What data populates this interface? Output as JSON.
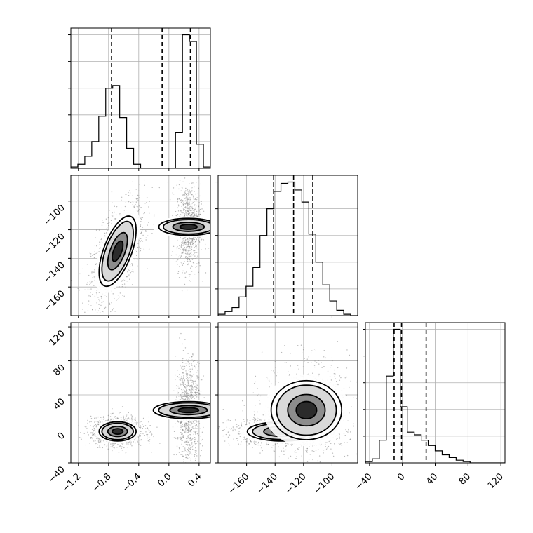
{
  "chart_data": {
    "type": "corner",
    "description_variables": 3,
    "colors": {
      "contour": "#000000",
      "scatter": "#7f7f7f",
      "grid": "#b0b0b0",
      "quantile_line": "#000000"
    },
    "grid": true,
    "panels": {
      "p1_hist": {
        "type": "histogram",
        "xlim": [
          -1.3,
          0.55
        ],
        "bin_edges": [
          -1.3,
          -1.2075,
          -1.115,
          -1.0225,
          -0.93,
          -0.8375,
          -0.745,
          -0.6525,
          -0.56,
          -0.4675,
          -0.375,
          -0.2825,
          -0.19,
          -0.0975,
          -0.005,
          0.0875,
          0.18,
          0.2725,
          0.365,
          0.4575,
          0.55
        ],
        "counts": [
          0.01,
          0.03,
          0.09,
          0.2,
          0.39,
          0.6,
          0.62,
          0.38,
          0.15,
          0.03,
          0,
          0,
          0,
          0,
          0,
          0.27,
          1.0,
          0.95,
          0.18,
          0.01
        ],
        "quantiles": [
          -0.76,
          -0.09,
          0.285
        ]
      },
      "p2_hist": {
        "type": "histogram",
        "xlim": [
          -180,
          -82
        ],
        "bin_edges": [
          -180,
          -175.1,
          -170.2,
          -165.3,
          -160.4,
          -155.5,
          -150.6,
          -145.7,
          -140.8,
          -135.9,
          -131,
          -126.1,
          -121.2,
          -116.3,
          -111.4,
          -106.5,
          -101.6,
          -96.7,
          -91.8,
          -86.9,
          -82
        ],
        "counts": [
          0.01,
          0.03,
          0.06,
          0.14,
          0.22,
          0.36,
          0.6,
          0.8,
          0.93,
          0.99,
          1.0,
          0.94,
          0.85,
          0.61,
          0.4,
          0.23,
          0.11,
          0.04,
          0.01,
          0
        ],
        "quantiles": [
          -141,
          -127,
          -113.5
        ]
      },
      "p3_hist": {
        "type": "histogram",
        "xlim": [
          -45,
          125
        ],
        "bin_edges": [
          -45,
          -36.5,
          -28,
          -19.5,
          -11,
          -2.5,
          6,
          14.5,
          23,
          31.5,
          40,
          48.5,
          57,
          65.5,
          74,
          82.5,
          91,
          99.5,
          108,
          116.5,
          125
        ],
        "counts": [
          0.01,
          0.03,
          0.17,
          0.65,
          1.0,
          0.42,
          0.23,
          0.21,
          0.17,
          0.13,
          0.09,
          0.06,
          0.04,
          0.02,
          0.01,
          0,
          0,
          0,
          0,
          0
        ],
        "quantiles": [
          -10,
          -1,
          29
        ]
      },
      "p21": {
        "type": "scatter_contour",
        "xlim": [
          -1.3,
          0.55
        ],
        "ylim": [
          -180,
          -82
        ],
        "clusters": [
          {
            "cx": -0.68,
            "cy": -135,
            "sx": 0.13,
            "sy": 13,
            "rho": 0.6,
            "weight": 0.58
          },
          {
            "cx": 0.26,
            "cy": -118,
            "sx": 0.06,
            "sy": 11,
            "rho": 0.0,
            "weight": 0.42
          }
        ]
      },
      "p31": {
        "type": "scatter_contour",
        "xlim": [
          -1.3,
          0.55
        ],
        "ylim": [
          -40,
          125
        ],
        "clusters": [
          {
            "cx": -0.68,
            "cy": -3,
            "sx": 0.13,
            "sy": 6,
            "rho": 0.0,
            "weight": 0.58
          },
          {
            "cx": 0.26,
            "cy": 22,
            "sx": 0.06,
            "sy": 22,
            "rho": 0.0,
            "weight": 0.42
          }
        ]
      },
      "p32": {
        "type": "scatter_contour",
        "xlim": [
          -180,
          -82
        ],
        "ylim": [
          -40,
          125
        ],
        "clusters": [
          {
            "cx": -135,
            "cy": -3,
            "sx": 13,
            "sy": 6,
            "rho": 0.0,
            "weight": 0.58
          },
          {
            "cx": -118,
            "cy": 22,
            "sx": 11,
            "sy": 22,
            "rho": 0.0,
            "weight": 0.42
          }
        ]
      }
    },
    "ticks": {
      "col1_x": [
        "−1.2",
        "−0.8",
        "−0.4",
        "0.0",
        "0.4"
      ],
      "col1_x_values": [
        -1.2,
        -0.8,
        -0.4,
        0.0,
        0.4
      ],
      "col2_x": [
        "−160",
        "−140",
        "−120",
        "−100"
      ],
      "col2_x_values": [
        -160,
        -140,
        -120,
        -100
      ],
      "col3_x": [
        "−40",
        "0",
        "40",
        "80",
        "120"
      ],
      "col3_x_values": [
        -40,
        0,
        40,
        80,
        120
      ],
      "row2_y": [
        "−100",
        "−120",
        "−140",
        "−160"
      ],
      "row2_y_values": [
        -100,
        -120,
        -140,
        -160
      ],
      "row3_y": [
        "120",
        "80",
        "40",
        "0",
        "−40"
      ],
      "row3_y_values": [
        120,
        80,
        40,
        0,
        -40
      ]
    }
  }
}
